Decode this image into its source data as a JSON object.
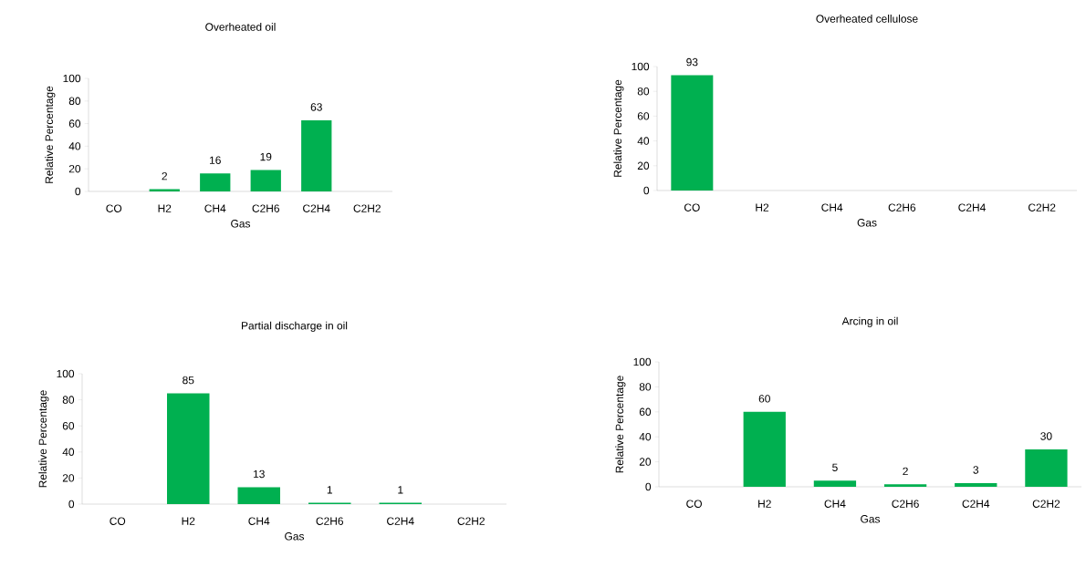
{
  "chart_data": [
    {
      "type": "bar",
      "title": "Overheated oil",
      "xlabel": "Gas",
      "ylabel": "Relative Percentage",
      "categories": [
        "CO",
        "H2",
        "CH4",
        "C2H6",
        "C2H4",
        "C2H2"
      ],
      "values": [
        0,
        2,
        16,
        19,
        63,
        0
      ],
      "value_labels": [
        null,
        "2",
        "16",
        "19",
        "63",
        null
      ],
      "color": "#00b050",
      "ylim": [
        0,
        100
      ],
      "yticks": [
        0,
        20,
        40,
        60,
        80,
        100
      ]
    },
    {
      "type": "bar",
      "title": "Overheated cellulose",
      "xlabel": "Gas",
      "ylabel": "Relative Percentage",
      "categories": [
        "CO",
        "H2",
        "CH4",
        "C2H6",
        "C2H4",
        "C2H2"
      ],
      "values": [
        93,
        0,
        0,
        0,
        0,
        0
      ],
      "value_labels": [
        "93",
        null,
        null,
        null,
        null,
        null
      ],
      "color": "#00b050",
      "ylim": [
        0,
        100
      ],
      "yticks": [
        0,
        20,
        40,
        60,
        80,
        100
      ]
    },
    {
      "type": "bar",
      "title": "Partial discharge in oil",
      "xlabel": "Gas",
      "ylabel": "Relative Percentage",
      "categories": [
        "CO",
        "H2",
        "CH4",
        "C2H6",
        "C2H4",
        "C2H2"
      ],
      "values": [
        0,
        85,
        13,
        1,
        1,
        0
      ],
      "value_labels": [
        null,
        "85",
        "13",
        "1",
        "1",
        null
      ],
      "color": "#00b050",
      "ylim": [
        0,
        100
      ],
      "yticks": [
        0,
        20,
        40,
        60,
        80,
        100
      ]
    },
    {
      "type": "bar",
      "title": "Arcing in oil",
      "xlabel": "Gas",
      "ylabel": "Relative Percentage",
      "categories": [
        "CO",
        "H2",
        "CH4",
        "C2H6",
        "C2H4",
        "C2H2"
      ],
      "values": [
        0,
        60,
        5,
        2,
        3,
        30
      ],
      "value_labels": [
        null,
        "60",
        "5",
        "2",
        "3",
        "30"
      ],
      "color": "#00b050",
      "ylim": [
        0,
        100
      ],
      "yticks": [
        0,
        20,
        40,
        60,
        80,
        100
      ]
    }
  ]
}
